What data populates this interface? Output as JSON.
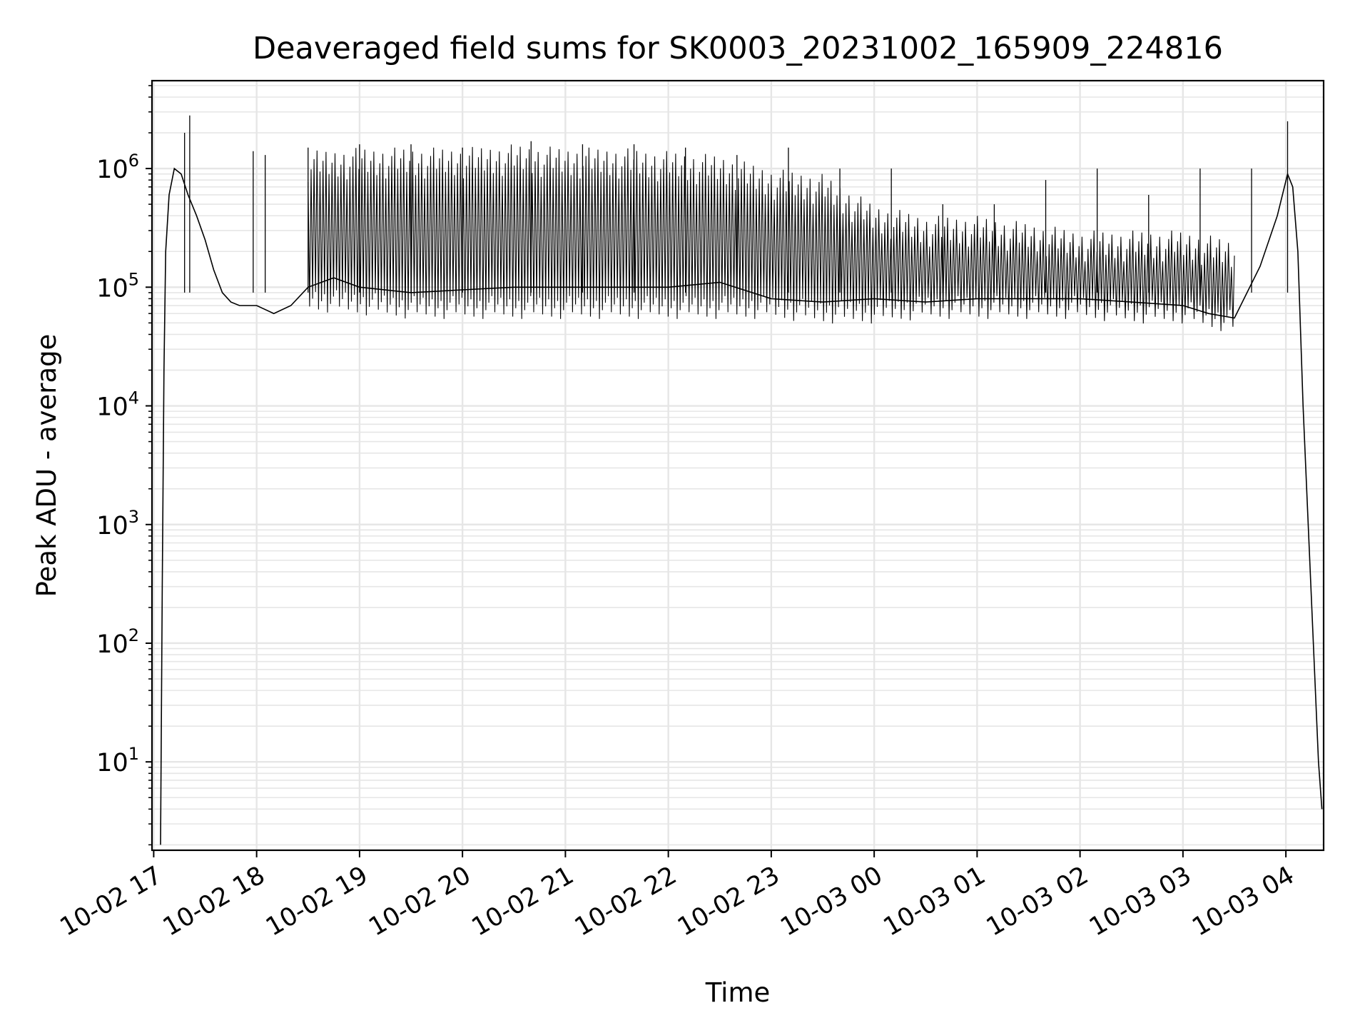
{
  "chart_data": {
    "type": "line",
    "title": "Deaveraged field sums for SK0003_20231002_165909_224816",
    "xlabel": "Time",
    "ylabel": "Peak ADU - average",
    "y_scale": "log",
    "ylim": [
      1.8,
      5500000
    ],
    "xlim": [
      "2023-10-02 16:59",
      "2023-10-03 04:22"
    ],
    "grid": "on (major and minor)",
    "line_color": "#000000",
    "grid_color": "#e6e6e6",
    "x_tick_labels": [
      "10-02 17",
      "10-02 18",
      "10-02 19",
      "10-02 20",
      "10-02 21",
      "10-02 22",
      "10-02 23",
      "10-03 00",
      "10-03 01",
      "10-03 02",
      "10-03 03",
      "10-03 04"
    ],
    "y_ticks": [
      {
        "value": 10,
        "base": "10",
        "exp": "1"
      },
      {
        "value": 100,
        "base": "10",
        "exp": "2"
      },
      {
        "value": 1000,
        "base": "10",
        "exp": "3"
      },
      {
        "value": 10000,
        "base": "10",
        "exp": "4"
      },
      {
        "value": 100000,
        "base": "10",
        "exp": "5"
      },
      {
        "value": 1000000,
        "base": "10",
        "exp": "6"
      }
    ],
    "series": [
      {
        "x": [
          "2023-10-02 17:04",
          "2023-10-02 17:05",
          "2023-10-02 17:06",
          "2023-10-02 17:07",
          "2023-10-02 17:09",
          "2023-10-02 17:12",
          "2023-10-02 17:16",
          "2023-10-02 17:20",
          "2023-10-02 17:25",
          "2023-10-02 17:30",
          "2023-10-02 17:35",
          "2023-10-02 17:40",
          "2023-10-02 17:45",
          "2023-10-02 17:50",
          "2023-10-02 17:55",
          "2023-10-02 18:00",
          "2023-10-02 18:10",
          "2023-10-02 18:20",
          "2023-10-02 18:30",
          "2023-10-02 18:45",
          "2023-10-02 19:00",
          "2023-10-02 19:30",
          "2023-10-02 20:00",
          "2023-10-02 20:30",
          "2023-10-02 21:00",
          "2023-10-02 21:30",
          "2023-10-02 22:00",
          "2023-10-02 22:30",
          "2023-10-02 23:00",
          "2023-10-02 23:30",
          "2023-10-03 00:00",
          "2023-10-03 00:30",
          "2023-10-03 01:00",
          "2023-10-03 01:30",
          "2023-10-03 02:00",
          "2023-10-03 02:30",
          "2023-10-03 03:00",
          "2023-10-03 03:15",
          "2023-10-03 03:30",
          "2023-10-03 03:45",
          "2023-10-03 03:55",
          "2023-10-03 04:01",
          "2023-10-03 04:04",
          "2023-10-03 04:07",
          "2023-10-03 04:10",
          "2023-10-03 04:13",
          "2023-10-03 04:16",
          "2023-10-03 04:19",
          "2023-10-03 04:21"
        ],
        "y": [
          2,
          300,
          20000,
          200000,
          600000,
          1000000,
          900000,
          600000,
          400000,
          250000,
          140000,
          90000,
          75000,
          70000,
          70000,
          70000,
          60000,
          70000,
          100000,
          120000,
          100000,
          90000,
          95000,
          100000,
          100000,
          100000,
          100000,
          110000,
          80000,
          75000,
          80000,
          75000,
          80000,
          80000,
          80000,
          75000,
          70000,
          60000,
          55000,
          150000,
          400000,
          900000,
          700000,
          200000,
          10000,
          1000,
          100,
          10,
          4
        ],
        "spikes": {
          "x": [
            "2023-10-02 17:18",
            "2023-10-02 17:21",
            "2023-10-02 17:58",
            "2023-10-02 18:05",
            "2023-10-02 18:30",
            "2023-10-02 19:00",
            "2023-10-02 19:30",
            "2023-10-02 20:00",
            "2023-10-02 20:40",
            "2023-10-02 21:10",
            "2023-10-02 21:40",
            "2023-10-02 22:10",
            "2023-10-02 22:40",
            "2023-10-02 23:10",
            "2023-10-02 23:40",
            "2023-10-03 00:10",
            "2023-10-03 00:40",
            "2023-10-03 01:10",
            "2023-10-03 01:40",
            "2023-10-03 02:10",
            "2023-10-03 02:40",
            "2023-10-03 03:10",
            "2023-10-03 03:40",
            "2023-10-03 04:01"
          ],
          "y": [
            2000000,
            2800000,
            1400000,
            1300000,
            1500000,
            1600000,
            1600000,
            1500000,
            1700000,
            1600000,
            1600000,
            1500000,
            1300000,
            1500000,
            1000000,
            1000000,
            500000,
            500000,
            800000,
            1000000,
            600000,
            1000000,
            1000000,
            2500000
          ]
        },
        "envelope": {
          "x": [
            "2023-10-02 18:30",
            "2023-10-02 19:00",
            "2023-10-02 19:30",
            "2023-10-02 20:00",
            "2023-10-02 20:30",
            "2023-10-02 21:00",
            "2023-10-02 21:30",
            "2023-10-02 22:00",
            "2023-10-02 22:30",
            "2023-10-02 23:00",
            "2023-10-02 23:30",
            "2023-10-03 00:00",
            "2023-10-03 00:30",
            "2023-10-03 01:00",
            "2023-10-03 01:30",
            "2023-10-03 02:00",
            "2023-10-03 02:30",
            "2023-10-03 03:00",
            "2023-10-03 03:30"
          ],
          "y_low": [
            70000,
            65000,
            60000,
            60000,
            60000,
            60000,
            60000,
            60000,
            60000,
            60000,
            55000,
            55000,
            60000,
            60000,
            60000,
            60000,
            55000,
            55000,
            45000
          ],
          "y_high": [
            1400000,
            1500000,
            1500000,
            1500000,
            1600000,
            1500000,
            1500000,
            1400000,
            1300000,
            1000000,
            900000,
            500000,
            400000,
            400000,
            350000,
            300000,
            300000,
            300000,
            250000
          ]
        }
      }
    ]
  }
}
